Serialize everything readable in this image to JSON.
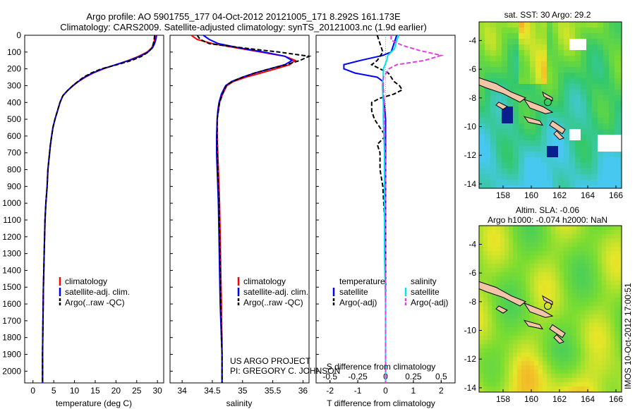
{
  "header": {
    "line1": "Argo profile: AO 5901755_177 04-Oct-2012 20121005_171 8.292S 161.173E",
    "line2": "Climatology: CARS2009. Satellite-adjusted climatology: synTS_20121003.nc (1.9d earlier)"
  },
  "colors": {
    "climatology": "#ff0000",
    "satellite": "#0000ff",
    "argo": "#000000",
    "sal_satellite": "#00e5e5",
    "sal_argo": "#e040e0"
  },
  "depth_axis": {
    "ticks": [
      0,
      100,
      200,
      300,
      400,
      500,
      600,
      700,
      800,
      900,
      1000,
      1100,
      1200,
      1300,
      1400,
      1500,
      1600,
      1700,
      1800,
      1900,
      2000
    ],
    "range": [
      0,
      2070
    ]
  },
  "panels": {
    "temperature": {
      "xlabel": "temperature (deg C)",
      "xticks": [
        "0",
        "5",
        "10",
        "15",
        "20",
        "25",
        "30"
      ],
      "legend": [
        "climatology",
        "satellite-adj. clim.",
        "Argo(..raw -QC)"
      ]
    },
    "salinity": {
      "xlabel": "salinity",
      "xticks": [
        "34",
        "34.5",
        "35",
        "35.5",
        "36"
      ],
      "legend": [
        "climatology",
        "satellite-adj. clim.",
        "Argo(..raw -QC)"
      ],
      "credit1": "US ARGO PROJECT",
      "credit2": "PI: GREGORY C. JOHNSON"
    },
    "difference": {
      "xlabel_bottom": "T difference from climatology",
      "xlabel_top": "S difference from climatology",
      "xticks_T": [
        "-2",
        "-1",
        "0",
        "1",
        "2"
      ],
      "xticks_S": [
        "-0.5",
        "-0.25",
        "0",
        "0.25",
        "0.5"
      ],
      "legend_t_title": "temperature",
      "legend_s_title": "salinity",
      "legend_t": [
        "satellite",
        "Argo(-adj)"
      ],
      "legend_s": [
        "satellite",
        "Argo(-adj)"
      ]
    }
  },
  "maps": {
    "sst_title": "sat. SST: 30 Argo: 29.2",
    "sla_title1": "Altim. SLA: -0.06",
    "sla_title2": "Argo h1000: -0.074 h2000: NaN",
    "yticks": [
      "-4",
      "-6",
      "-8",
      "-10",
      "-12",
      "-14"
    ],
    "xticks": [
      "158",
      "160",
      "162",
      "164",
      "166"
    ],
    "side_label": "IMOS 10-Oct-2012 17:00:51"
  },
  "chart_data": [
    {
      "type": "line",
      "title": "",
      "xlabel": "temperature (deg C)",
      "ylabel": "",
      "xlim": [
        -2,
        31.5
      ],
      "ylim": [
        2070,
        0
      ],
      "series": [
        {
          "name": "climatology",
          "x": [
            29.4,
            29.3,
            29.1,
            28.6,
            27.5,
            25.5,
            23,
            20,
            17,
            14.5,
            12.6,
            11,
            9.7,
            8.3,
            7.2,
            6.5,
            5.9,
            5.3,
            4.8,
            4.5,
            4.2,
            4.0,
            3.8,
            3.6,
            3.4,
            3.1,
            2.9,
            2.8,
            2.7,
            2.6,
            2.5,
            2.4,
            2.3,
            2.3
          ],
          "y": [
            0,
            25,
            50,
            75,
            100,
            125,
            150,
            175,
            200,
            225,
            250,
            275,
            300,
            330,
            360,
            400,
            450,
            500,
            550,
            600,
            650,
            700,
            750,
            800,
            900,
            1000,
            1100,
            1200,
            1300,
            1400,
            1500,
            1700,
            1900,
            2070
          ]
        },
        {
          "name": "satellite-adj. clim.",
          "x": [
            29.8,
            29.6,
            29.3,
            28.8,
            27.7,
            25.8,
            23.2,
            20,
            16.8,
            14.3,
            12.4,
            10.9,
            9.6,
            8.3,
            7.2,
            6.5,
            5.9,
            5.3,
            4.8,
            4.5,
            4.2,
            4.0,
            3.8,
            3.6,
            3.4,
            3.1,
            2.9,
            2.8,
            2.7,
            2.6,
            2.5,
            2.4,
            2.3,
            2.3
          ],
          "y": [
            0,
            25,
            50,
            75,
            100,
            125,
            150,
            175,
            200,
            225,
            250,
            275,
            300,
            330,
            360,
            400,
            450,
            500,
            550,
            600,
            650,
            700,
            750,
            800,
            900,
            1000,
            1100,
            1200,
            1300,
            1400,
            1500,
            1700,
            1900,
            2070
          ]
        },
        {
          "name": "Argo(..raw -QC)",
          "x": [
            29.3,
            29.2,
            29.0,
            28.7,
            27.8,
            26.2,
            23.8,
            20.3,
            16.5,
            14.0,
            12.2,
            10.8,
            9.6,
            8.3,
            7.2,
            6.5,
            5.9,
            5.3,
            4.8,
            4.5,
            4.2,
            4.0,
            3.8,
            3.6,
            3.4,
            3.1,
            2.9,
            2.8,
            2.7,
            2.6,
            2.5,
            2.4,
            2.3,
            2.3
          ],
          "y": [
            0,
            25,
            50,
            75,
            100,
            125,
            150,
            175,
            200,
            225,
            250,
            275,
            300,
            330,
            360,
            400,
            450,
            500,
            550,
            600,
            650,
            700,
            750,
            800,
            900,
            1000,
            1100,
            1200,
            1300,
            1400,
            1500,
            1700,
            1900,
            2070
          ]
        }
      ]
    },
    {
      "type": "line",
      "title": "",
      "xlabel": "salinity",
      "ylabel": "",
      "xlim": [
        33.8,
        36.1
      ],
      "ylim": [
        2070,
        0
      ],
      "series": [
        {
          "name": "climatology",
          "x": [
            34.15,
            34.25,
            34.5,
            34.9,
            35.3,
            35.7,
            35.87,
            35.78,
            35.55,
            35.3,
            35.05,
            34.85,
            34.74,
            34.67,
            34.62,
            34.6,
            34.58,
            34.58,
            34.59,
            34.6,
            34.61,
            34.62,
            34.63,
            34.64,
            34.65,
            34.65,
            34.66,
            34.66,
            34.66
          ],
          "y": [
            0,
            25,
            50,
            75,
            100,
            125,
            150,
            175,
            200,
            225,
            250,
            275,
            300,
            350,
            400,
            450,
            500,
            600,
            700,
            800,
            900,
            1000,
            1200,
            1400,
            1600,
            1700,
            1800,
            1900,
            2070
          ]
        },
        {
          "name": "satellite-adj. clim.",
          "x": [
            34.35,
            34.45,
            34.6,
            34.95,
            35.35,
            35.7,
            35.82,
            35.7,
            35.45,
            35.2,
            35.0,
            34.82,
            34.72,
            34.65,
            34.61,
            34.59,
            34.58,
            34.57,
            34.57,
            34.58,
            34.59,
            34.6,
            34.61,
            34.62,
            34.63,
            34.64,
            34.65,
            34.66,
            34.66
          ],
          "y": [
            0,
            25,
            50,
            75,
            100,
            125,
            150,
            175,
            200,
            225,
            250,
            275,
            300,
            350,
            400,
            450,
            500,
            600,
            700,
            800,
            900,
            1000,
            1200,
            1400,
            1600,
            1700,
            1800,
            1900,
            2070
          ]
        },
        {
          "name": "Argo(..raw -QC)",
          "x": [
            34.25,
            34.3,
            34.45,
            35.0,
            35.6,
            36.1,
            35.95,
            35.72,
            35.45,
            35.2,
            35.0,
            34.83,
            34.73,
            34.67,
            34.62,
            34.6,
            34.58,
            34.58,
            34.58,
            34.59,
            34.6,
            34.61,
            34.62,
            34.63,
            34.64,
            34.65,
            34.65,
            34.66,
            34.66
          ],
          "y": [
            0,
            25,
            50,
            75,
            100,
            125,
            150,
            175,
            200,
            225,
            250,
            275,
            300,
            350,
            400,
            450,
            500,
            600,
            700,
            800,
            900,
            1000,
            1200,
            1400,
            1600,
            1700,
            1800,
            1900,
            2070
          ]
        }
      ]
    },
    {
      "type": "line",
      "title": "",
      "xlabel": "T difference from climatology",
      "ylabel": "",
      "xlim": [
        -2.5,
        2.5
      ],
      "ylim": [
        2070,
        0
      ],
      "series": [
        {
          "name": "satellite",
          "x": [
            0.4,
            0.3,
            0.2,
            -0.1,
            -0.9,
            -1.5,
            -1.5,
            -1.1,
            -0.3,
            -0.1,
            -0.1,
            -0.1,
            -0.05,
            0,
            0,
            0,
            0,
            0,
            0,
            0,
            0
          ],
          "y": [
            0,
            50,
            100,
            120,
            150,
            175,
            200,
            225,
            250,
            275,
            300,
            350,
            400,
            500,
            600,
            800,
            1000,
            1300,
            1600,
            1900,
            2070
          ]
        },
        {
          "name": "Argo(-adj)",
          "x": [
            -0.3,
            -0.2,
            -0.1,
            -0.3,
            -0.5,
            -0.2,
            0.1,
            0.2,
            0.3,
            0.5,
            0.6,
            0.3,
            -0.2,
            -0.5,
            -0.5,
            -0.4,
            -0.2,
            0,
            -0.3,
            -0.2,
            -0.2,
            -0.1,
            0,
            0,
            0,
            0
          ],
          "y": [
            0,
            50,
            100,
            150,
            175,
            200,
            225,
            250,
            275,
            300,
            325,
            350,
            375,
            400,
            450,
            500,
            550,
            600,
            650,
            700,
            800,
            900,
            1200,
            1500,
            1900,
            2070
          ]
        }
      ]
    },
    {
      "type": "line",
      "title": "",
      "xlabel": "S difference from climatology",
      "ylabel": "",
      "xlim": [
        -0.625,
        0.625
      ],
      "ylim": [
        2070,
        0
      ],
      "series": [
        {
          "name": "satellite",
          "x": [
            0.12,
            0.1,
            0.08,
            0.02,
            0.01,
            -0.02,
            -0.02,
            -0.03,
            -0.02,
            -0.02,
            -0.01,
            -0.01,
            -0.01,
            0,
            0,
            0
          ],
          "y": [
            0,
            30,
            80,
            120,
            150,
            200,
            250,
            300,
            400,
            500,
            700,
            1000,
            1300,
            1600,
            1900,
            2070
          ]
        },
        {
          "name": "Argo(-adj)",
          "x": [
            0.05,
            0.05,
            0.15,
            0.3,
            0.5,
            0.35,
            0.1,
            0.03,
            -0.02,
            -0.02,
            -0.01,
            0,
            0,
            0
          ],
          "y": [
            0,
            30,
            60,
            90,
            120,
            150,
            175,
            200,
            250,
            300,
            500,
            800,
            1200,
            2070
          ]
        }
      ]
    },
    {
      "type": "heatmap",
      "title": "sat. SST: 30 Argo: 29.2",
      "xlabel": "",
      "ylabel": "",
      "xlim": [
        156.3,
        166.4
      ],
      "ylim": [
        -14.3,
        -2.7
      ]
    },
    {
      "type": "heatmap",
      "title": "Altim. SLA: -0.06",
      "xlabel": "",
      "ylabel": "",
      "xlim": [
        156.3,
        166.4
      ],
      "ylim": [
        -14.3,
        -2.7
      ]
    }
  ]
}
